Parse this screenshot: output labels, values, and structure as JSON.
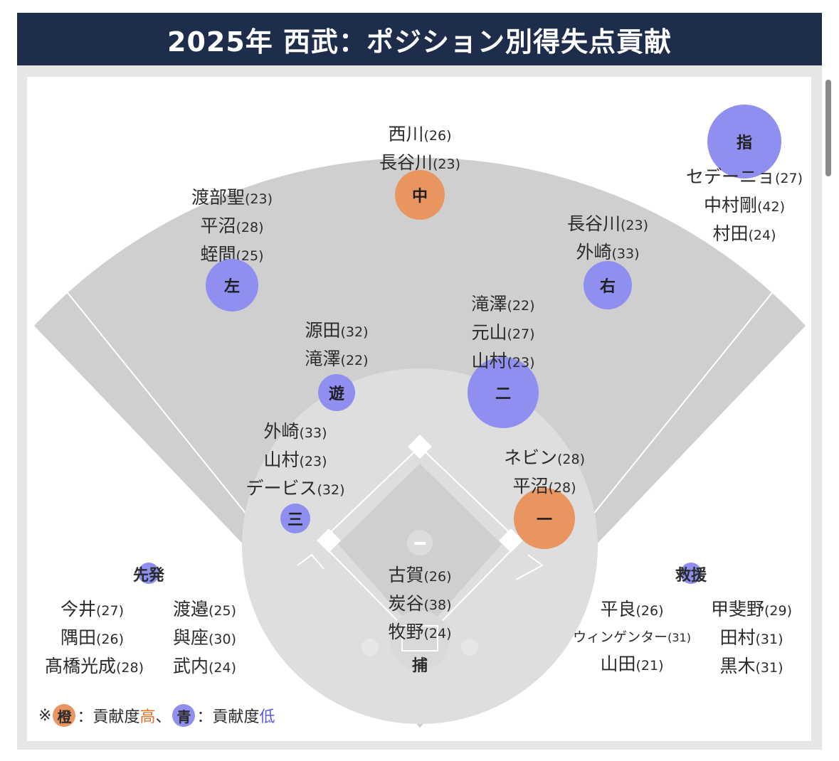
{
  "title": "2025年 西武：ポジション別得失点貢献",
  "colors": {
    "high": "#e89560",
    "low": "#8f8ff0",
    "header_bg": "#1f2d4d"
  },
  "positions": {
    "center": {
      "label": "中",
      "level": "high",
      "players": [
        [
          "西川",
          "(26)"
        ],
        [
          "長谷川",
          "(23)"
        ]
      ]
    },
    "dh": {
      "label": "指",
      "level": "low",
      "players": [
        [
          "セデーニョ",
          "(27)"
        ],
        [
          "中村剛",
          "(42)"
        ],
        [
          "村田",
          "(24)"
        ]
      ]
    },
    "left": {
      "label": "左",
      "level": "low",
      "players": [
        [
          "渡部聖",
          "(23)"
        ],
        [
          "平沼",
          "(28)"
        ],
        [
          "蛭間",
          "(25)"
        ]
      ]
    },
    "right": {
      "label": "右",
      "level": "low",
      "players": [
        [
          "長谷川",
          "(23)"
        ],
        [
          "外崎",
          "(33)"
        ]
      ]
    },
    "short": {
      "label": "遊",
      "level": "low",
      "players": [
        [
          "源田",
          "(32)"
        ],
        [
          "滝澤",
          "(22)"
        ]
      ]
    },
    "second": {
      "label": "二",
      "level": "low",
      "players": [
        [
          "滝澤",
          "(22)"
        ],
        [
          "元山",
          "(27)"
        ],
        [
          "山村",
          "(23)"
        ]
      ]
    },
    "third": {
      "label": "三",
      "level": "low",
      "players": [
        [
          "外崎",
          "(33)"
        ],
        [
          "山村",
          "(23)"
        ],
        [
          "デービス",
          "(32)"
        ]
      ]
    },
    "first": {
      "label": "一",
      "level": "high",
      "players": [
        [
          "ネビン",
          "(28)"
        ],
        [
          "平沼",
          "(28)"
        ]
      ]
    },
    "catcher": {
      "label": "捕",
      "players": [
        [
          "古賀",
          "(26)"
        ],
        [
          "炭谷",
          "(38)"
        ],
        [
          "牧野",
          "(24)"
        ]
      ]
    }
  },
  "starters": {
    "title": "先発",
    "col1": [
      [
        "今井",
        "(27)"
      ],
      [
        "隅田",
        "(26)"
      ],
      [
        "髙橋光成",
        "(28)"
      ]
    ],
    "col2": [
      [
        "渡邉",
        "(25)"
      ],
      [
        "與座",
        "(30)"
      ],
      [
        "武内",
        "(24)"
      ]
    ]
  },
  "relievers": {
    "title": "救援",
    "col1": [
      [
        "平良",
        "(26)"
      ],
      [
        "ウィンゲンター",
        "(31)"
      ],
      [
        "山田",
        "(21)"
      ]
    ],
    "col2": [
      [
        "甲斐野",
        "(29)"
      ],
      [
        "田村",
        "(31)"
      ],
      [
        "黒木",
        "(31)"
      ]
    ]
  },
  "legend": {
    "prefix": "※",
    "orange_chip": "橙",
    "orange_text": "：貢献度",
    "orange_level": "高",
    "sep": "、",
    "blue_chip": "青",
    "blue_text": "：貢献度",
    "blue_level": "低"
  }
}
